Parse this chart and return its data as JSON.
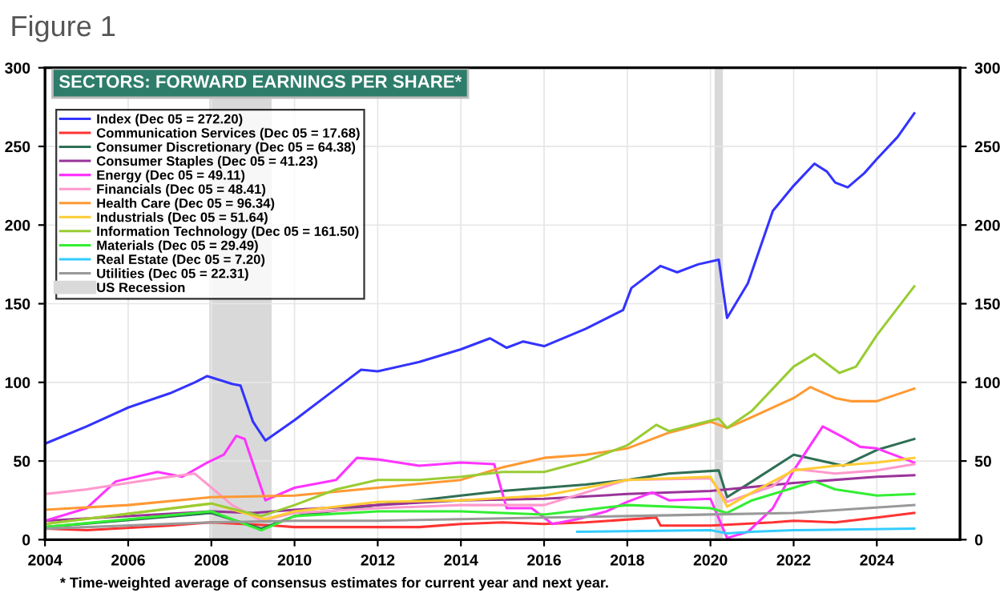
{
  "chart_data": {
    "type": "line",
    "title": "SECTORS: FORWARD EARNINGS PER SHARE*",
    "subtitle": "Figure 1",
    "annotations": [
      "* Time-weighted average of consensus estimates for current year and next year."
    ],
    "xlim": [
      2004,
      2026
    ],
    "xticks": [
      2004,
      2006,
      2008,
      2010,
      2012,
      2014,
      2016,
      2018,
      2020,
      2022,
      2024
    ],
    "ylim": [
      0,
      300
    ],
    "yticks": [
      0,
      50,
      100,
      150,
      200,
      250,
      300
    ],
    "y2lim": [
      0,
      300
    ],
    "y2ticks": [
      0,
      50,
      100,
      150,
      200,
      250,
      300
    ],
    "grid": true,
    "legend": "top left",
    "marker": "none",
    "line_style": "solid",
    "bands": [
      {
        "axis": "x",
        "from": 2007.95,
        "to": 2009.45,
        "label": "US Recession",
        "color": "#d9d9d9"
      },
      {
        "axis": "x",
        "from": 2020.1,
        "to": 2020.3,
        "color": "#d9d9d9"
      }
    ],
    "series": [
      {
        "name": "Index (Dec 05 = 272.20)",
        "color": "#3333ff",
        "x": [
          2004,
          2005,
          2006,
          2007,
          2007.6,
          2007.9,
          2008.5,
          2008.7,
          2009.0,
          2009.3,
          2010,
          2011,
          2011.6,
          2012,
          2013,
          2014,
          2014.7,
          2015.1,
          2015.5,
          2016,
          2017,
          2017.9,
          2018.1,
          2018.8,
          2019.2,
          2019.7,
          2020.2,
          2020.4,
          2020.9,
          2021.5,
          2022.0,
          2022.5,
          2022.8,
          2023.0,
          2023.3,
          2023.7,
          2024.0,
          2024.5,
          2024.9
        ],
        "values": [
          61,
          72,
          84,
          93,
          100,
          104,
          99,
          98,
          75,
          63,
          76,
          96,
          108,
          107,
          113,
          121,
          128,
          122,
          126,
          123,
          134,
          146,
          160,
          174,
          170,
          175,
          178,
          141,
          163,
          209,
          225,
          239,
          234,
          227,
          224,
          233,
          242,
          256,
          271
        ]
      },
      {
        "name": "Communication Services (Dec 05 = 17.68)",
        "color": "#ff3333",
        "x": [
          2004,
          2005,
          2007,
          2008,
          2009.5,
          2010,
          2013,
          2014,
          2015,
          2016,
          2017,
          2018.7,
          2018.8,
          2020,
          2021.5,
          2022,
          2023,
          2024,
          2024.9
        ],
        "values": [
          7,
          6,
          9,
          11,
          9,
          8,
          8,
          10,
          11,
          10,
          11,
          14,
          9,
          9,
          11,
          12,
          11,
          14,
          17
        ]
      },
      {
        "name": "Consumer Discretionary (Dec 05 = 64.38)",
        "color": "#2f6f55",
        "x": [
          2004,
          2008,
          2009.2,
          2010,
          2012,
          2014,
          2015,
          2017,
          2018,
          2019,
          2020.2,
          2020.4,
          2021,
          2022,
          2023.2,
          2024,
          2024.9
        ],
        "values": [
          8,
          17,
          7,
          15,
          22,
          28,
          31,
          35,
          38,
          42,
          44,
          27,
          37,
          54,
          47,
          57,
          64
        ]
      },
      {
        "name": "Consumer Staples (Dec 05 = 41.23)",
        "color": "#993399",
        "x": [
          2004,
          2008,
          2009,
          2010,
          2012,
          2014,
          2016,
          2018,
          2020,
          2022,
          2024,
          2024.9
        ],
        "values": [
          12,
          18,
          17,
          19,
          22,
          25,
          26,
          29,
          31,
          36,
          40,
          41
        ]
      },
      {
        "name": "Energy (Dec 05 = 49.11)",
        "color": "#ff33ff",
        "x": [
          2004,
          2005,
          2005.7,
          2006.7,
          2007.3,
          2007.9,
          2008.3,
          2008.6,
          2008.8,
          2009.3,
          2010,
          2011,
          2011.5,
          2012,
          2013,
          2014,
          2014.8,
          2015.1,
          2015.7,
          2016.2,
          2016.8,
          2017.5,
          2018,
          2018.6,
          2019,
          2020,
          2020.4,
          2020.9,
          2021.5,
          2022,
          2022.7,
          2023.2,
          2023.6,
          2024,
          2024.5,
          2024.9
        ],
        "values": [
          12,
          20,
          37,
          43,
          40,
          49,
          54,
          66,
          64,
          25,
          33,
          38,
          52,
          51,
          47,
          49,
          48,
          20,
          20,
          10,
          13,
          18,
          24,
          30,
          25,
          26,
          1,
          5,
          20,
          44,
          72,
          65,
          59,
          58,
          53,
          49
        ]
      },
      {
        "name": "Financials (Dec 05 = 48.41)",
        "color": "#ff99cc",
        "x": [
          2004,
          2005,
          2006,
          2007,
          2007.6,
          2008.5,
          2009.2,
          2010,
          2012,
          2014,
          2016,
          2018,
          2020,
          2020.4,
          2021.5,
          2022,
          2023,
          2024,
          2024.9
        ],
        "values": [
          29,
          32,
          36,
          40,
          42,
          22,
          12,
          17,
          20,
          22,
          22,
          38,
          39,
          24,
          34,
          45,
          42,
          44,
          48
        ]
      },
      {
        "name": "Health Care (Dec 05 = 96.34)",
        "color": "#ff9933",
        "x": [
          2004,
          2006,
          2008,
          2010,
          2012,
          2014,
          2015,
          2016,
          2017,
          2018,
          2019,
          2020,
          2020.4,
          2021,
          2022,
          2022.4,
          2023,
          2023.4,
          2024,
          2024.9
        ],
        "values": [
          19,
          22,
          27,
          28,
          33,
          38,
          46,
          52,
          54,
          58,
          68,
          75,
          71,
          78,
          90,
          97,
          90,
          88,
          88,
          96
        ]
      },
      {
        "name": "Industrials (Dec 05 = 51.64)",
        "color": "#ffcc33",
        "x": [
          2004,
          2008,
          2009.3,
          2010,
          2012,
          2014,
          2016,
          2018,
          2020,
          2020.4,
          2021,
          2022,
          2023,
          2024,
          2024.9
        ],
        "values": [
          10,
          23,
          13,
          18,
          24,
          25,
          28,
          38,
          40,
          21,
          30,
          44,
          47,
          49,
          52
        ]
      },
      {
        "name": "Information Technology (Dec 05 = 161.50)",
        "color": "#99cc33",
        "x": [
          2004,
          2008,
          2009.2,
          2010,
          2011,
          2012,
          2013,
          2014,
          2015,
          2016,
          2017,
          2018,
          2018.7,
          2019,
          2020.2,
          2020.4,
          2021,
          2022,
          2022.5,
          2023.1,
          2023.5,
          2024,
          2024.9
        ],
        "values": [
          10,
          23,
          15,
          22,
          32,
          38,
          38,
          40,
          43,
          43,
          50,
          60,
          73,
          69,
          77,
          71,
          82,
          110,
          118,
          106,
          110,
          130,
          161
        ]
      },
      {
        "name": "Materials (Dec 05 = 29.49)",
        "color": "#33ee33",
        "x": [
          2004,
          2008,
          2009.2,
          2010,
          2012,
          2014,
          2016,
          2018,
          2020,
          2020.4,
          2021,
          2022,
          2022.5,
          2023,
          2024,
          2024.9
        ],
        "values": [
          8,
          18,
          6,
          15,
          18,
          18,
          16,
          22,
          20,
          17,
          25,
          33,
          37,
          32,
          28,
          29
        ]
      },
      {
        "name": "Real Estate (Dec 05 = 7.20)",
        "color": "#33ccff",
        "x": [
          2016.8,
          2020,
          2020.4,
          2021,
          2022,
          2024.9
        ],
        "values": [
          5,
          6,
          4,
          5,
          6,
          7
        ]
      },
      {
        "name": "Utilities (Dec 05 = 22.31)",
        "color": "#999999",
        "x": [
          2004,
          2008,
          2010,
          2012,
          2014,
          2016,
          2018,
          2020,
          2022,
          2024.9
        ],
        "values": [
          7,
          11,
          12,
          12,
          13,
          14,
          15,
          16,
          17,
          22
        ]
      }
    ]
  }
}
